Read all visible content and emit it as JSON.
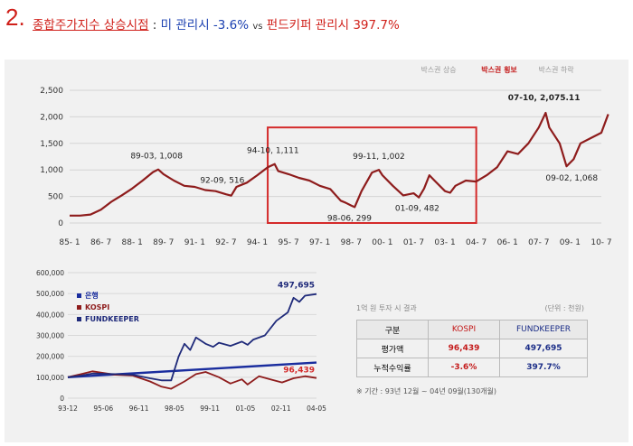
{
  "heading": {
    "number": "2.",
    "topic": "종합주가지수 상승시점",
    "separator": " : ",
    "not_managed": "미 관리시 -3.6% ",
    "vs": "vs",
    "managed": " 펀드키퍼 관리시 397.7%"
  },
  "top_legend": [
    "박스권 상승",
    "박스권 횡보",
    "박스권 하락"
  ],
  "colors": {
    "kospi": "#8e1c1c",
    "bank": "#1a2d9e",
    "fundkeeper": "#1f2a7a",
    "highlight": "#d42a2a",
    "legend_active": "#c41a1a"
  },
  "chart_data": [
    {
      "type": "line",
      "title": "",
      "xlabel": "",
      "ylabel": "",
      "ylim": [
        0,
        2500
      ],
      "yticks": [
        "0",
        "500",
        "1,000",
        "1,500",
        "2,000",
        "2,500"
      ],
      "xticks": [
        "85- 1",
        "86- 7",
        "88- 1",
        "89- 7",
        "91- 1",
        "92- 7",
        "94- 1",
        "95- 7",
        "97- 1",
        "98- 7",
        "00- 1",
        "01- 7",
        "03- 1",
        "04- 7",
        "06- 1",
        "07- 7",
        "09- 1",
        "10- 7"
      ],
      "grid": true,
      "series": [
        {
          "x": [
            1985.0,
            1985.5,
            1986.0,
            1986.5,
            1987.0,
            1987.5,
            1988.0,
            1988.5,
            1989.0,
            1989.25,
            1989.5,
            1990.0,
            1990.5,
            1991.0,
            1991.5,
            1992.0,
            1992.5,
            1992.75,
            1993.0,
            1993.5,
            1994.0,
            1994.5,
            1994.83,
            1995.0,
            1995.5,
            1996.0,
            1996.5,
            1997.0,
            1997.5,
            1998.0,
            1998.25,
            1998.5,
            1998.67,
            1999.0,
            1999.5,
            1999.83,
            2000.0,
            2000.5,
            2001.0,
            2001.5,
            2001.75,
            2002.0,
            2002.25,
            2002.5,
            2003.0,
            2003.25,
            2003.5,
            2004.0,
            2004.5,
            2005.0,
            2005.5,
            2006.0,
            2006.5,
            2007.0,
            2007.5,
            2007.83,
            2008.0,
            2008.5,
            2008.83,
            2009.17,
            2009.5,
            2010.0,
            2010.5,
            2010.83
          ],
          "values": [
            140,
            140,
            160,
            250,
            400,
            520,
            650,
            800,
            960,
            1008,
            920,
            800,
            700,
            680,
            620,
            600,
            540,
            516,
            680,
            760,
            900,
            1050,
            1111,
            980,
            920,
            850,
            800,
            700,
            640,
            420,
            380,
            330,
            299,
            600,
            950,
            1002,
            900,
            700,
            520,
            560,
            482,
            650,
            900,
            800,
            600,
            570,
            700,
            800,
            780,
            900,
            1050,
            1350,
            1300,
            1500,
            1800,
            2075,
            1800,
            1500,
            1068,
            1200,
            1500,
            1600,
            1700,
            2050
          ]
        }
      ],
      "annotations": [
        {
          "label": "89-03, 1,008",
          "x": 1989.17,
          "y": 1008
        },
        {
          "label": "92-09, 516",
          "x": 1992.67,
          "y": 516
        },
        {
          "label": "94-10, 1,111",
          "x": 1994.75,
          "y": 1111
        },
        {
          "label": "98-06, 299",
          "x": 1998.42,
          "y": 299
        },
        {
          "label": "99-11, 1,002",
          "x": 1999.83,
          "y": 1002
        },
        {
          "label": "01-09, 482",
          "x": 2001.67,
          "y": 482
        },
        {
          "label": "07-10, 2,075.11",
          "x": 2007.75,
          "y": 2075.11
        },
        {
          "label": "09-02, 1,068",
          "x": 2009.08,
          "y": 1068
        }
      ],
      "highlight_box": {
        "x_from": 1994.5,
        "x_to": 2004.5,
        "y_from": 0,
        "y_to": 1800
      }
    },
    {
      "type": "line",
      "title": "",
      "xlabel": "",
      "ylabel": "",
      "ylim": [
        0,
        600000
      ],
      "yticks": [
        "0",
        "100,000",
        "200,000",
        "300,000",
        "400,000",
        "500,000",
        "600,000"
      ],
      "xticks": [
        "93-12",
        "95-06",
        "96-11",
        "98-05",
        "99-11",
        "01-05",
        "02-11",
        "04-05"
      ],
      "grid": true,
      "legend": {
        "position": "top-left",
        "labels": [
          "은행",
          "KOSPI",
          "FUNDKEEPER"
        ]
      },
      "series": [
        {
          "name": "은행",
          "x": [
            1993.92,
            2004.75
          ],
          "values": [
            100000,
            170000
          ]
        },
        {
          "name": "KOSPI",
          "x": [
            1993.92,
            1994.5,
            1995.0,
            1996.0,
            1996.75,
            1997.5,
            1998.0,
            1998.42,
            1999.0,
            1999.5,
            1999.92,
            2000.5,
            2001.0,
            2001.5,
            2001.75,
            2002.25,
            2002.75,
            2003.25,
            2003.75,
            2004.25,
            2004.75
          ],
          "values": [
            100000,
            115000,
            128000,
            112000,
            108000,
            80000,
            55000,
            45000,
            80000,
            115000,
            125000,
            100000,
            70000,
            90000,
            65000,
            105000,
            90000,
            75000,
            95000,
            105000,
            96439
          ]
        },
        {
          "name": "FUNDKEEPER",
          "x": [
            1993.92,
            1994.5,
            1995.0,
            1996.0,
            1996.75,
            1997.5,
            1998.0,
            1998.42,
            1998.75,
            1999.0,
            1999.25,
            1999.5,
            1999.92,
            2000.25,
            2000.5,
            2001.0,
            2001.5,
            2001.75,
            2002.0,
            2002.5,
            2003.0,
            2003.5,
            2003.75,
            2004.0,
            2004.25,
            2004.75
          ],
          "values": [
            100000,
            108000,
            118000,
            115000,
            112000,
            95000,
            85000,
            85000,
            200000,
            260000,
            230000,
            290000,
            260000,
            245000,
            265000,
            250000,
            270000,
            255000,
            280000,
            300000,
            370000,
            410000,
            480000,
            460000,
            490000,
            497695
          ]
        }
      ],
      "annotations": [
        {
          "label": "497,695",
          "x": 2004.75,
          "y": 497695
        },
        {
          "label": "96,439",
          "x": 2004.75,
          "y": 96439
        }
      ]
    }
  ],
  "info": {
    "note": "1억 원 투자 시 결과",
    "unit": "(단위 : 천원)",
    "headers": [
      "구분",
      "KOSPI",
      "FUNDKEEPER"
    ],
    "rows": [
      {
        "label": "평가액",
        "kospi": "96,439",
        "fk": "497,695"
      },
      {
        "label": "누적수익률",
        "kospi": "-3.6%",
        "fk": "397.7%"
      }
    ],
    "period": "※ 기간 : 93년 12월 ~ 04년 09월(130개월)"
  }
}
